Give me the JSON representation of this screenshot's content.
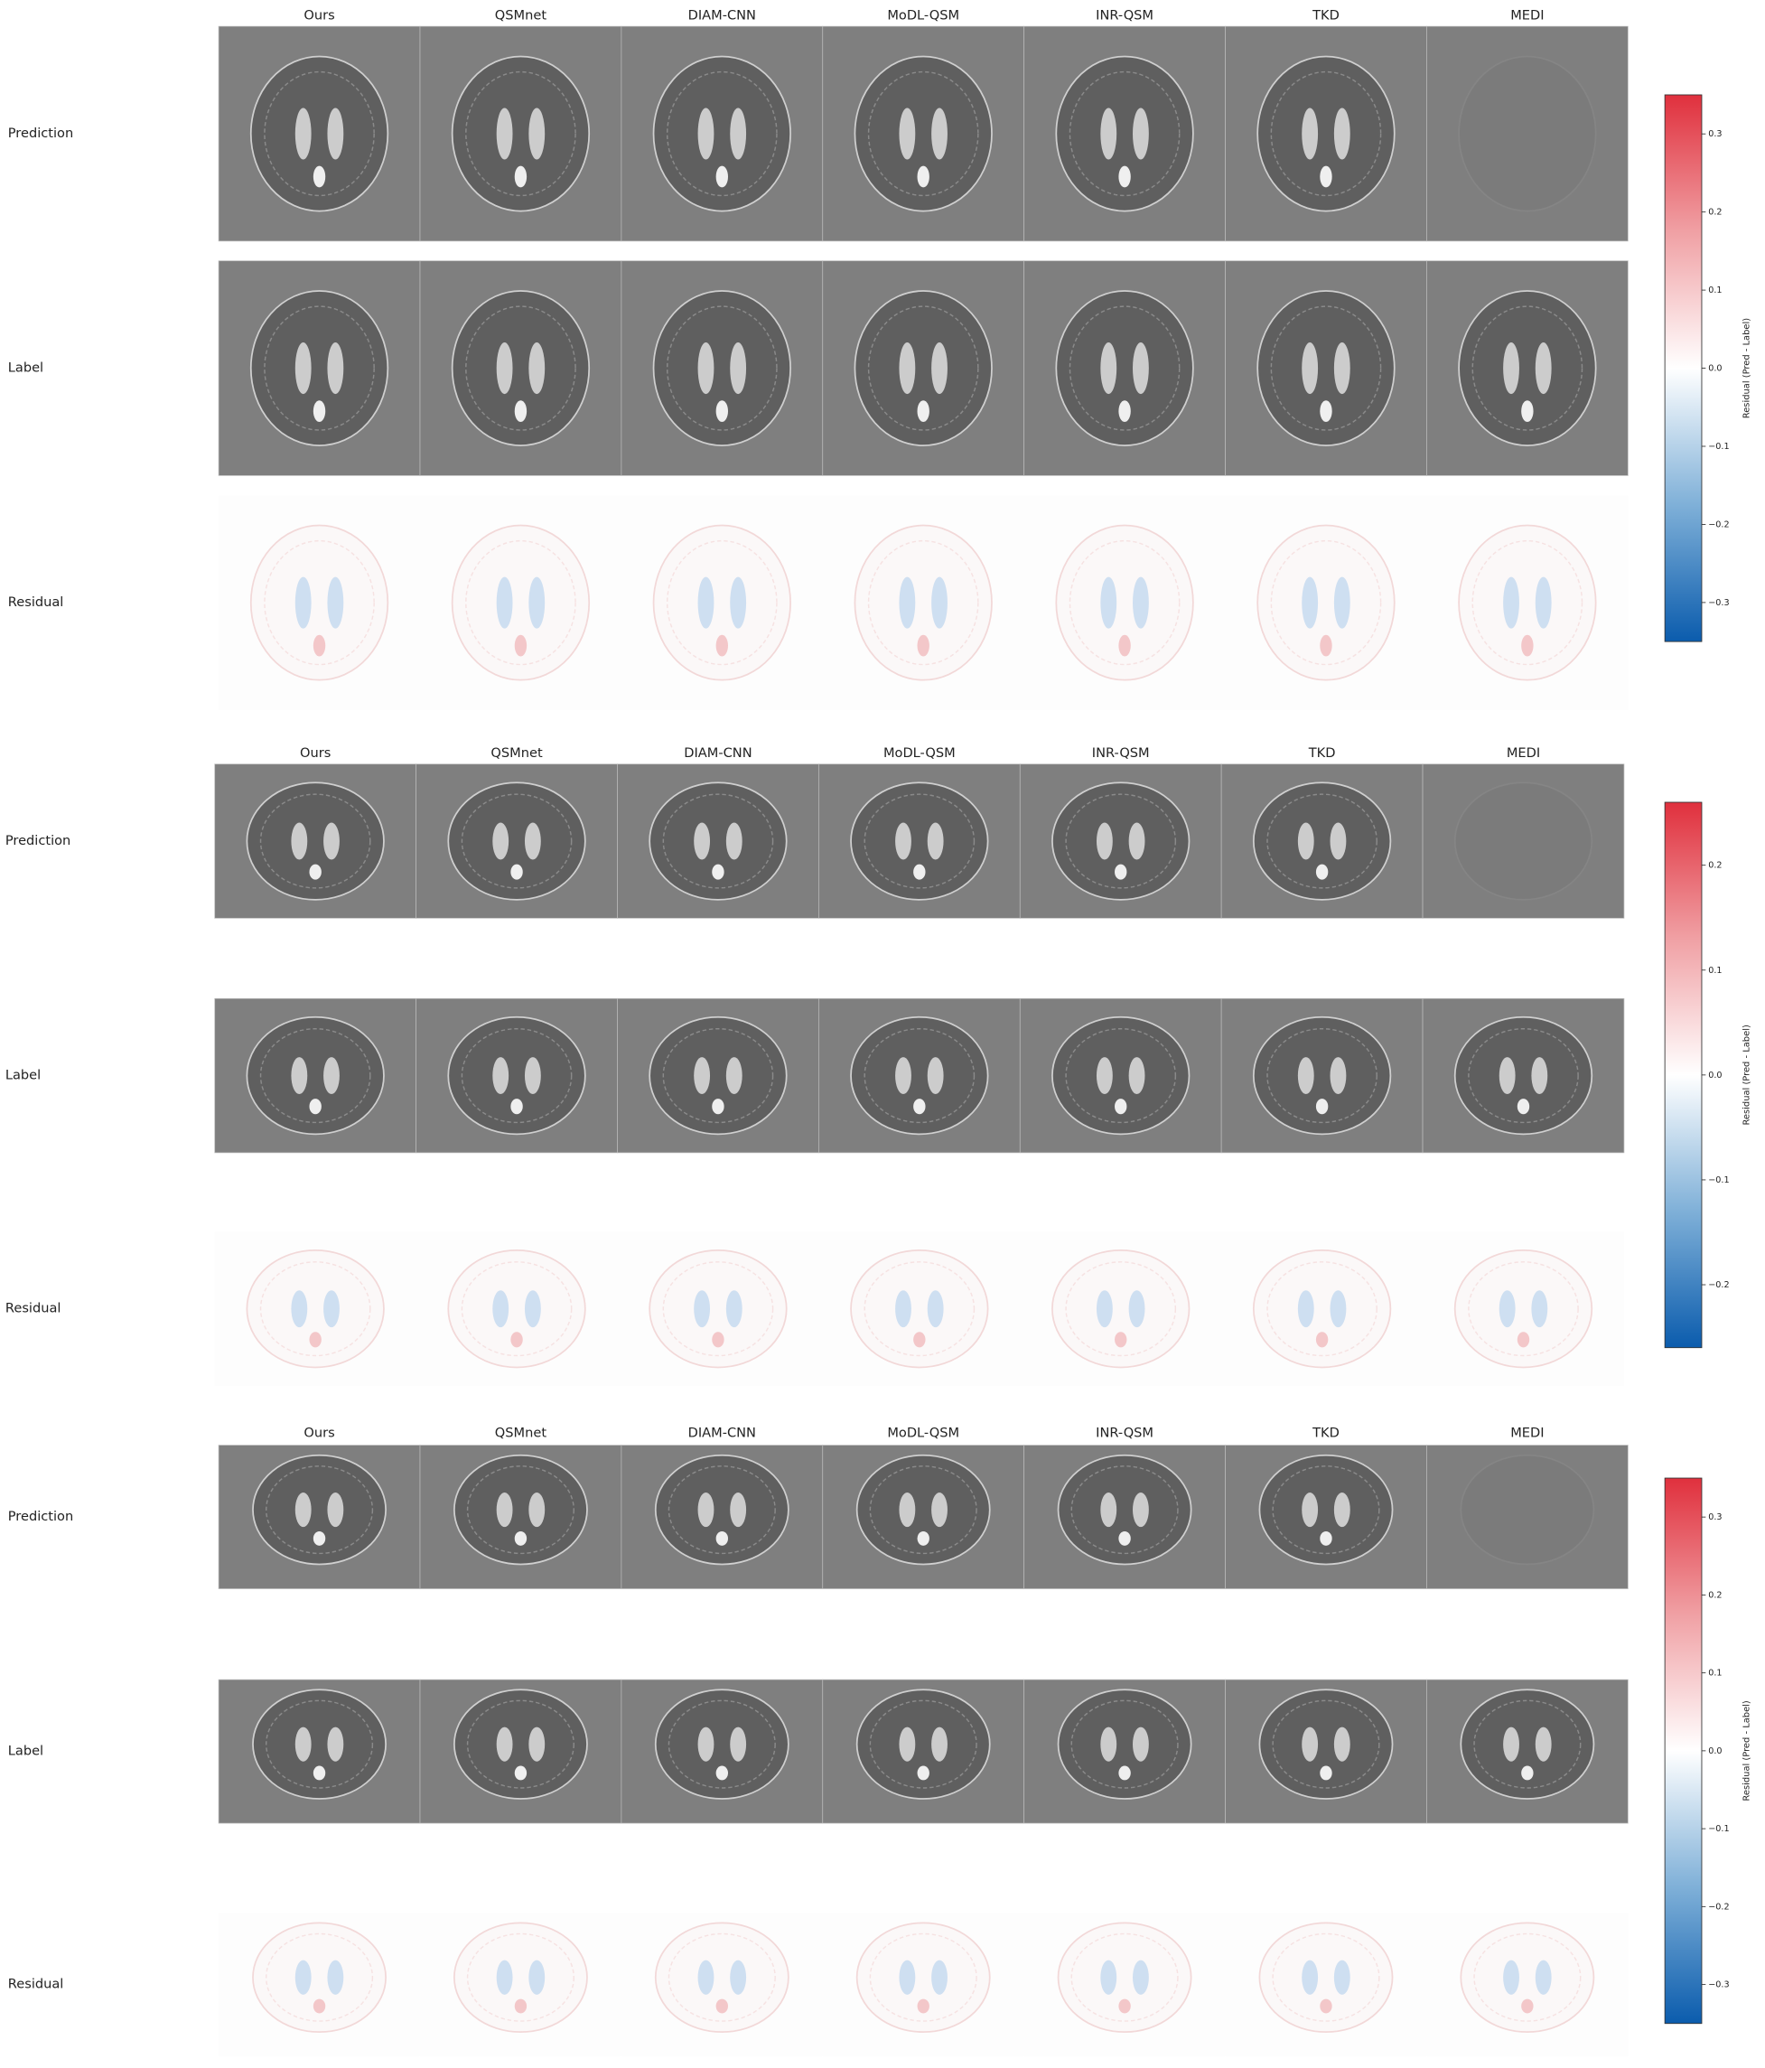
{
  "panels": [
    {
      "columns": [
        "Ours",
        "QSMnet",
        "DIAM-CNN",
        "MoDL-QSM",
        "INR-QSM",
        "TKD",
        "MEDI"
      ],
      "rows": [
        "Prediction",
        "Label",
        "Residual"
      ],
      "colorbar": {
        "label": "Residual (Pred - Label)",
        "range": [
          -0.35,
          0.35
        ],
        "ticks": [
          0.3,
          0.2,
          0.1,
          {
            "value": 0,
            "label": "0.0"
          },
          {
            "value": -0.1,
            "label": "−0.1"
          },
          {
            "value": -0.2,
            "label": "−0.2"
          },
          {
            "value": -0.3,
            "label": "−0.3"
          }
        ]
      }
    },
    {
      "columns": [
        "Ours",
        "QSMnet",
        "DIAM-CNN",
        "MoDL-QSM",
        "INR-QSM",
        "TKD",
        "MEDI"
      ],
      "rows": [
        "Prediction",
        "Label",
        "Residual"
      ],
      "colorbar": {
        "label": "Residual (Pred - Label)",
        "range": [
          -0.26,
          0.26
        ],
        "ticks": [
          0.2,
          0.1,
          {
            "value": 0,
            "label": "0.0"
          },
          {
            "value": -0.1,
            "label": "−0.1"
          },
          {
            "value": -0.2,
            "label": "−0.2"
          }
        ]
      }
    },
    {
      "columns": [
        "Ours",
        "QSMnet",
        "DIAM-CNN",
        "MoDL-QSM",
        "INR-QSM",
        "TKD",
        "MEDI"
      ],
      "rows": [
        "Prediction",
        "Label",
        "Residual"
      ],
      "colorbar": {
        "label": "Residual (Pred - Label)",
        "range": [
          -0.35,
          0.35
        ],
        "ticks": [
          0.3,
          0.2,
          0.1,
          {
            "value": 0,
            "label": "0.0"
          },
          {
            "value": -0.1,
            "label": "−0.1"
          },
          {
            "value": -0.2,
            "label": "−0.2"
          },
          {
            "value": -0.3,
            "label": "−0.3"
          }
        ]
      }
    }
  ]
}
